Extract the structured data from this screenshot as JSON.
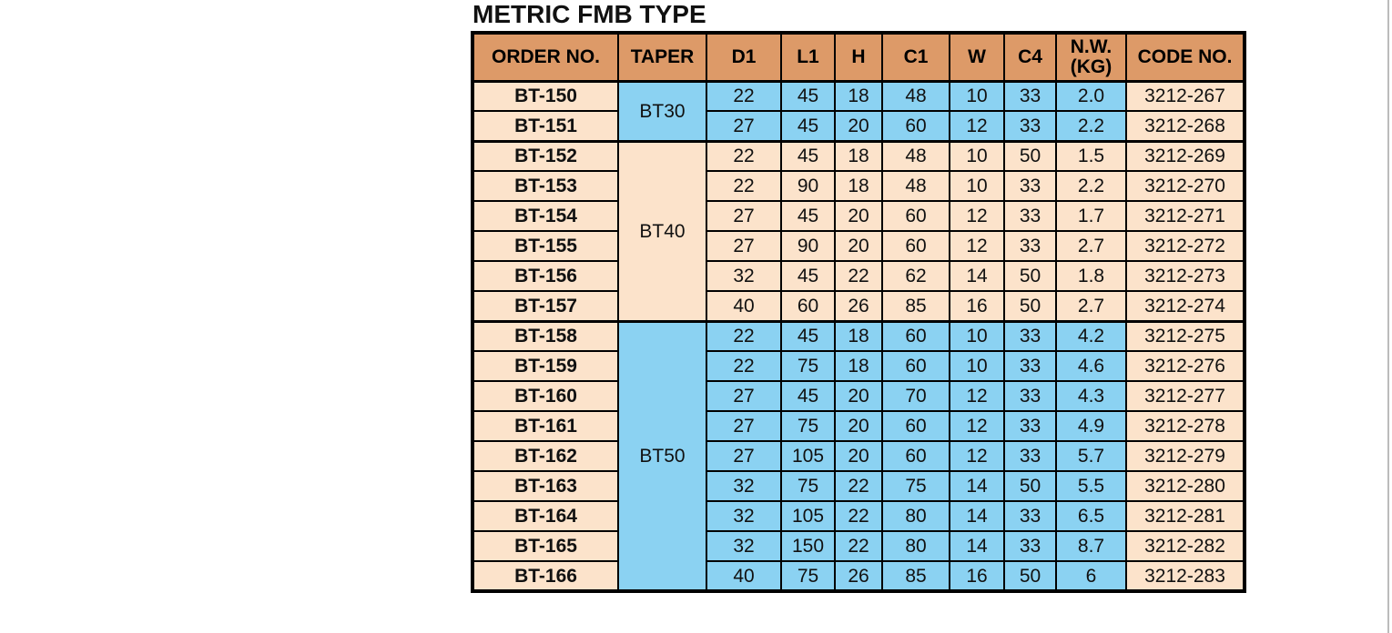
{
  "page": {
    "title": "METRIC FMB TYPE"
  },
  "colors": {
    "header_bg": "#dd9a68",
    "cream_bg": "#fce3cb",
    "blue_bg": "#8bd2f2",
    "border": "#000000",
    "page_edge_line": "#bcbcbc",
    "text": "#111111"
  },
  "table": {
    "headers": [
      "ORDER NO.",
      "TAPER",
      "D1",
      "L1",
      "H",
      "C1",
      "W",
      "C4",
      "N.W.\n(KG)",
      "CODE NO."
    ],
    "groups": [
      {
        "taper": "BT30",
        "scheme": "blue",
        "rows": [
          {
            "order_no": "BT-150",
            "d1": "22",
            "l1": "45",
            "h": "18",
            "c1": "48",
            "w": "10",
            "c4": "33",
            "nw_kg": "2.0",
            "code_no": "3212-267"
          },
          {
            "order_no": "BT-151",
            "d1": "27",
            "l1": "45",
            "h": "20",
            "c1": "60",
            "w": "12",
            "c4": "33",
            "nw_kg": "2.2",
            "code_no": "3212-268"
          }
        ]
      },
      {
        "taper": "BT40",
        "scheme": "cream",
        "rows": [
          {
            "order_no": "BT-152",
            "d1": "22",
            "l1": "45",
            "h": "18",
            "c1": "48",
            "w": "10",
            "c4": "50",
            "nw_kg": "1.5",
            "code_no": "3212-269"
          },
          {
            "order_no": "BT-153",
            "d1": "22",
            "l1": "90",
            "h": "18",
            "c1": "48",
            "w": "10",
            "c4": "33",
            "nw_kg": "2.2",
            "code_no": "3212-270"
          },
          {
            "order_no": "BT-154",
            "d1": "27",
            "l1": "45",
            "h": "20",
            "c1": "60",
            "w": "12",
            "c4": "33",
            "nw_kg": "1.7",
            "code_no": "3212-271"
          },
          {
            "order_no": "BT-155",
            "d1": "27",
            "l1": "90",
            "h": "20",
            "c1": "60",
            "w": "12",
            "c4": "33",
            "nw_kg": "2.7",
            "code_no": "3212-272"
          },
          {
            "order_no": "BT-156",
            "d1": "32",
            "l1": "45",
            "h": "22",
            "c1": "62",
            "w": "14",
            "c4": "50",
            "nw_kg": "1.8",
            "code_no": "3212-273"
          },
          {
            "order_no": "BT-157",
            "d1": "40",
            "l1": "60",
            "h": "26",
            "c1": "85",
            "w": "16",
            "c4": "50",
            "nw_kg": "2.7",
            "code_no": "3212-274"
          }
        ]
      },
      {
        "taper": "BT50",
        "scheme": "blue",
        "rows": [
          {
            "order_no": "BT-158",
            "d1": "22",
            "l1": "45",
            "h": "18",
            "c1": "60",
            "w": "10",
            "c4": "33",
            "nw_kg": "4.2",
            "code_no": "3212-275"
          },
          {
            "order_no": "BT-159",
            "d1": "22",
            "l1": "75",
            "h": "18",
            "c1": "60",
            "w": "10",
            "c4": "33",
            "nw_kg": "4.6",
            "code_no": "3212-276"
          },
          {
            "order_no": "BT-160",
            "d1": "27",
            "l1": "45",
            "h": "20",
            "c1": "70",
            "w": "12",
            "c4": "33",
            "nw_kg": "4.3",
            "code_no": "3212-277"
          },
          {
            "order_no": "BT-161",
            "d1": "27",
            "l1": "75",
            "h": "20",
            "c1": "60",
            "w": "12",
            "c4": "33",
            "nw_kg": "4.9",
            "code_no": "3212-278"
          },
          {
            "order_no": "BT-162",
            "d1": "27",
            "l1": "105",
            "h": "20",
            "c1": "60",
            "w": "12",
            "c4": "33",
            "nw_kg": "5.7",
            "code_no": "3212-279"
          },
          {
            "order_no": "BT-163",
            "d1": "32",
            "l1": "75",
            "h": "22",
            "c1": "75",
            "w": "14",
            "c4": "50",
            "nw_kg": "5.5",
            "code_no": "3212-280"
          },
          {
            "order_no": "BT-164",
            "d1": "32",
            "l1": "105",
            "h": "22",
            "c1": "80",
            "w": "14",
            "c4": "33",
            "nw_kg": "6.5",
            "code_no": "3212-281"
          },
          {
            "order_no": "BT-165",
            "d1": "32",
            "l1": "150",
            "h": "22",
            "c1": "80",
            "w": "14",
            "c4": "33",
            "nw_kg": "8.7",
            "code_no": "3212-282"
          },
          {
            "order_no": "BT-166",
            "d1": "40",
            "l1": "75",
            "h": "26",
            "c1": "85",
            "w": "16",
            "c4": "50",
            "nw_kg": "6",
            "code_no": "3212-283"
          }
        ]
      }
    ]
  }
}
